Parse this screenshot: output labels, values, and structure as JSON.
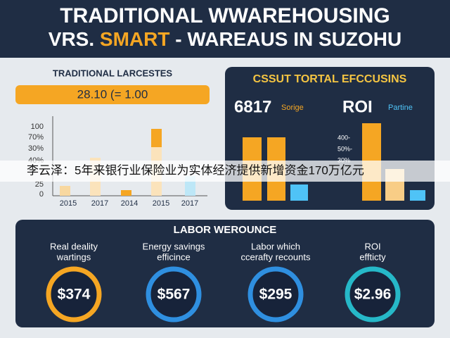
{
  "header": {
    "title_line1": "TRADITIONAL WWAREHOUSING",
    "title_line2": [
      "VRS.",
      "SMART",
      "- WAREAUS IN SUZOHU"
    ]
  },
  "left_panel": {
    "title": "TRADITIONAL LARCESTES",
    "banner": "28.10 (= 1.00",
    "y_labels": [
      "100",
      "70%",
      "30%",
      "40%",
      "25",
      "0"
    ],
    "x_labels": [
      "2015",
      "2017",
      "2014",
      "2015",
      "2017"
    ]
  },
  "right_panel": {
    "title": "CSSUT TORTAL EFCCUSINS",
    "stats": [
      {
        "value": "6817",
        "label": "Sorige"
      },
      {
        "value": "ROI",
        "label": "Partine"
      }
    ],
    "axis_labels": [
      "400-",
      "50%-",
      "30%"
    ]
  },
  "caption": "李云泽：5年来银行业保险业为实体经济提供新增资金170万亿元",
  "bottom_panel": {
    "title": "LABOR WEROUNCE",
    "items": [
      {
        "label": [
          "Real deality",
          "wartings"
        ],
        "value": "$374"
      },
      {
        "label": [
          "Energy savings",
          "efficince"
        ],
        "value": "$567"
      },
      {
        "label": [
          "Labor which",
          "ccerafty recounts"
        ],
        "value": "$295"
      },
      {
        "label": [
          "ROI",
          "effticty"
        ],
        "value": "$2.96"
      }
    ]
  }
}
